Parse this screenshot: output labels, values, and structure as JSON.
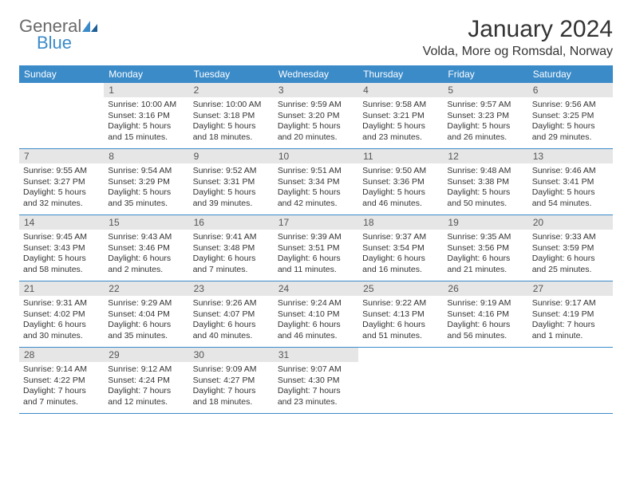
{
  "logo": {
    "word1": "General",
    "word2": "Blue"
  },
  "title": "January 2024",
  "location": "Volda, More og Romsdal, Norway",
  "colors": {
    "header_bg": "#3b8bc9",
    "header_text": "#ffffff",
    "daynum_bg": "#e6e6e6",
    "text": "#333333",
    "logo_gray": "#6a6a6a",
    "logo_blue": "#3b8bc9"
  },
  "weekdays": [
    "Sunday",
    "Monday",
    "Tuesday",
    "Wednesday",
    "Thursday",
    "Friday",
    "Saturday"
  ],
  "layout": {
    "columns": 7,
    "rows": 5,
    "first_weekday_index": 1
  },
  "days": [
    {
      "n": 1,
      "sunrise": "10:00 AM",
      "sunset": "3:16 PM",
      "daylight": "5 hours and 15 minutes."
    },
    {
      "n": 2,
      "sunrise": "10:00 AM",
      "sunset": "3:18 PM",
      "daylight": "5 hours and 18 minutes."
    },
    {
      "n": 3,
      "sunrise": "9:59 AM",
      "sunset": "3:20 PM",
      "daylight": "5 hours and 20 minutes."
    },
    {
      "n": 4,
      "sunrise": "9:58 AM",
      "sunset": "3:21 PM",
      "daylight": "5 hours and 23 minutes."
    },
    {
      "n": 5,
      "sunrise": "9:57 AM",
      "sunset": "3:23 PM",
      "daylight": "5 hours and 26 minutes."
    },
    {
      "n": 6,
      "sunrise": "9:56 AM",
      "sunset": "3:25 PM",
      "daylight": "5 hours and 29 minutes."
    },
    {
      "n": 7,
      "sunrise": "9:55 AM",
      "sunset": "3:27 PM",
      "daylight": "5 hours and 32 minutes."
    },
    {
      "n": 8,
      "sunrise": "9:54 AM",
      "sunset": "3:29 PM",
      "daylight": "5 hours and 35 minutes."
    },
    {
      "n": 9,
      "sunrise": "9:52 AM",
      "sunset": "3:31 PM",
      "daylight": "5 hours and 39 minutes."
    },
    {
      "n": 10,
      "sunrise": "9:51 AM",
      "sunset": "3:34 PM",
      "daylight": "5 hours and 42 minutes."
    },
    {
      "n": 11,
      "sunrise": "9:50 AM",
      "sunset": "3:36 PM",
      "daylight": "5 hours and 46 minutes."
    },
    {
      "n": 12,
      "sunrise": "9:48 AM",
      "sunset": "3:38 PM",
      "daylight": "5 hours and 50 minutes."
    },
    {
      "n": 13,
      "sunrise": "9:46 AM",
      "sunset": "3:41 PM",
      "daylight": "5 hours and 54 minutes."
    },
    {
      "n": 14,
      "sunrise": "9:45 AM",
      "sunset": "3:43 PM",
      "daylight": "5 hours and 58 minutes."
    },
    {
      "n": 15,
      "sunrise": "9:43 AM",
      "sunset": "3:46 PM",
      "daylight": "6 hours and 2 minutes."
    },
    {
      "n": 16,
      "sunrise": "9:41 AM",
      "sunset": "3:48 PM",
      "daylight": "6 hours and 7 minutes."
    },
    {
      "n": 17,
      "sunrise": "9:39 AM",
      "sunset": "3:51 PM",
      "daylight": "6 hours and 11 minutes."
    },
    {
      "n": 18,
      "sunrise": "9:37 AM",
      "sunset": "3:54 PM",
      "daylight": "6 hours and 16 minutes."
    },
    {
      "n": 19,
      "sunrise": "9:35 AM",
      "sunset": "3:56 PM",
      "daylight": "6 hours and 21 minutes."
    },
    {
      "n": 20,
      "sunrise": "9:33 AM",
      "sunset": "3:59 PM",
      "daylight": "6 hours and 25 minutes."
    },
    {
      "n": 21,
      "sunrise": "9:31 AM",
      "sunset": "4:02 PM",
      "daylight": "6 hours and 30 minutes."
    },
    {
      "n": 22,
      "sunrise": "9:29 AM",
      "sunset": "4:04 PM",
      "daylight": "6 hours and 35 minutes."
    },
    {
      "n": 23,
      "sunrise": "9:26 AM",
      "sunset": "4:07 PM",
      "daylight": "6 hours and 40 minutes."
    },
    {
      "n": 24,
      "sunrise": "9:24 AM",
      "sunset": "4:10 PM",
      "daylight": "6 hours and 46 minutes."
    },
    {
      "n": 25,
      "sunrise": "9:22 AM",
      "sunset": "4:13 PM",
      "daylight": "6 hours and 51 minutes."
    },
    {
      "n": 26,
      "sunrise": "9:19 AM",
      "sunset": "4:16 PM",
      "daylight": "6 hours and 56 minutes."
    },
    {
      "n": 27,
      "sunrise": "9:17 AM",
      "sunset": "4:19 PM",
      "daylight": "7 hours and 1 minute."
    },
    {
      "n": 28,
      "sunrise": "9:14 AM",
      "sunset": "4:22 PM",
      "daylight": "7 hours and 7 minutes."
    },
    {
      "n": 29,
      "sunrise": "9:12 AM",
      "sunset": "4:24 PM",
      "daylight": "7 hours and 12 minutes."
    },
    {
      "n": 30,
      "sunrise": "9:09 AM",
      "sunset": "4:27 PM",
      "daylight": "7 hours and 18 minutes."
    },
    {
      "n": 31,
      "sunrise": "9:07 AM",
      "sunset": "4:30 PM",
      "daylight": "7 hours and 23 minutes."
    }
  ],
  "labels": {
    "sunrise": "Sunrise:",
    "sunset": "Sunset:",
    "daylight": "Daylight:"
  }
}
